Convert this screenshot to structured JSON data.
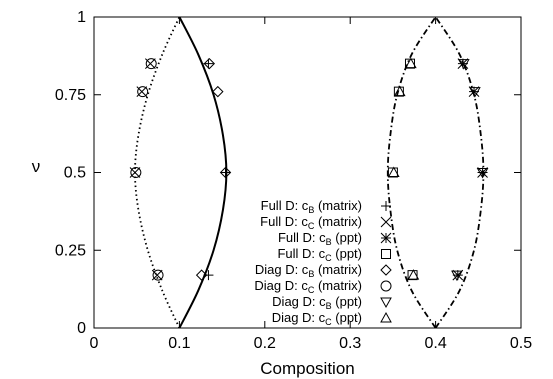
{
  "chart_data": {
    "type": "scatter",
    "xlabel": "Composition",
    "ylabel": "ν",
    "xlim": [
      0,
      0.5
    ],
    "ylim": [
      0,
      1
    ],
    "x_ticks": [
      "0",
      "0.1",
      "0.2",
      "0.3",
      "0.4",
      "0.5"
    ],
    "y_ticks": [
      "0",
      "0.25",
      "0.5",
      "0.75",
      "1"
    ],
    "grid": false,
    "legend_position": "center-bottom",
    "curves": [
      {
        "style": "dotted",
        "x": [
          0.1,
          0.08,
          0.063,
          0.052,
          0.048,
          0.052,
          0.063,
          0.08,
          0.1
        ],
        "y": [
          0,
          0.12,
          0.25,
          0.38,
          0.5,
          0.62,
          0.75,
          0.88,
          1
        ]
      },
      {
        "style": "solid",
        "x": [
          0.1,
          0.122,
          0.14,
          0.151,
          0.155,
          0.151,
          0.14,
          0.122,
          0.1
        ],
        "y": [
          0,
          0.12,
          0.25,
          0.38,
          0.5,
          0.62,
          0.75,
          0.88,
          1
        ]
      },
      {
        "style": "dash-dot",
        "x": [
          0.4,
          0.372,
          0.355,
          0.347,
          0.344,
          0.347,
          0.355,
          0.372,
          0.4
        ],
        "y": [
          0,
          0.12,
          0.25,
          0.38,
          0.5,
          0.62,
          0.75,
          0.88,
          1
        ]
      },
      {
        "style": "dash-dot",
        "x": [
          0.4,
          0.428,
          0.445,
          0.453,
          0.456,
          0.453,
          0.445,
          0.428,
          0.4
        ],
        "y": [
          0,
          0.12,
          0.25,
          0.38,
          0.5,
          0.62,
          0.75,
          0.88,
          1
        ]
      }
    ],
    "series": [
      {
        "label_main": "Full D: c",
        "label_sub": "B",
        "label_tail": " (matrix)",
        "marker": "plus",
        "x": [
          0.134,
          0.154,
          0.134
        ],
        "y": [
          0.17,
          0.5,
          0.85
        ]
      },
      {
        "label_main": "Full D: c",
        "label_sub": "C",
        "label_tail": " (matrix)",
        "marker": "cross",
        "x": [
          0.074,
          0.048,
          0.056,
          0.066
        ],
        "y": [
          0.17,
          0.5,
          0.76,
          0.85
        ]
      },
      {
        "label_main": "Full D: c",
        "label_sub": "B",
        "label_tail": " (ppt)",
        "marker": "star",
        "x": [
          0.426,
          0.455,
          0.445,
          0.432
        ],
        "y": [
          0.17,
          0.5,
          0.76,
          0.85
        ]
      },
      {
        "label_main": "Full D: c",
        "label_sub": "C",
        "label_tail": " (ppt)",
        "marker": "square",
        "x": [
          0.373,
          0.35,
          0.357,
          0.37
        ],
        "y": [
          0.17,
          0.5,
          0.76,
          0.85
        ]
      },
      {
        "label_main": "Diag D: c",
        "label_sub": "B",
        "label_tail": " (matrix)",
        "marker": "diamond",
        "x": [
          0.126,
          0.154,
          0.145,
          0.135
        ],
        "y": [
          0.17,
          0.5,
          0.76,
          0.85
        ]
      },
      {
        "label_main": "Diag D: c",
        "label_sub": "C",
        "label_tail": " (matrix)",
        "marker": "circle",
        "x": [
          0.075,
          0.049,
          0.057,
          0.067
        ],
        "y": [
          0.17,
          0.5,
          0.76,
          0.85
        ]
      },
      {
        "label_main": "Diag D: c",
        "label_sub": "B",
        "label_tail": " (ppt)",
        "marker": "triangle-down",
        "x": [
          0.425,
          0.455,
          0.446,
          0.433
        ],
        "y": [
          0.17,
          0.5,
          0.76,
          0.85
        ]
      },
      {
        "label_main": "Diag D: c",
        "label_sub": "C",
        "label_tail": " (ppt)",
        "marker": "triangle-up",
        "x": [
          0.374,
          0.351,
          0.358,
          0.371
        ],
        "y": [
          0.17,
          0.5,
          0.76,
          0.85
        ]
      }
    ]
  }
}
